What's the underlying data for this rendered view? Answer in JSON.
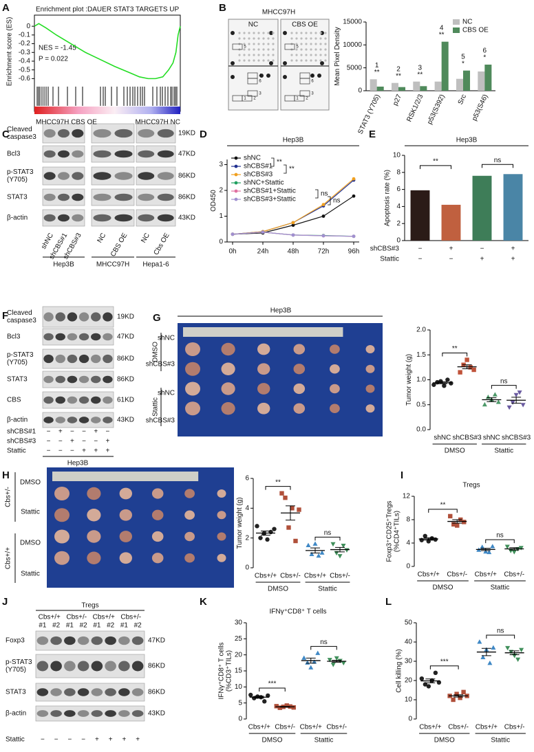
{
  "panels": [
    "A",
    "B",
    "C",
    "D",
    "E",
    "F",
    "G",
    "H",
    "I",
    "J",
    "K",
    "L"
  ],
  "array": {
    "title": "MHCC97H",
    "columns": [
      "NC",
      "CBS OE"
    ],
    "spots": [
      "5",
      "4",
      "6",
      "3",
      "1",
      "2"
    ]
  },
  "blot_c": {
    "rows": [
      {
        "label": [
          "Cleaved",
          "caspase3"
        ],
        "size": "19KD"
      },
      {
        "label": [
          "Bcl3"
        ],
        "size": "47KD"
      },
      {
        "label": [
          "p-STAT3",
          "(Y705)"
        ],
        "size": "86KD"
      },
      {
        "label": [
          "STAT3"
        ],
        "size": "86KD"
      },
      {
        "label": [
          "β-actin"
        ],
        "size": "43KD"
      }
    ],
    "lanes": [
      "shNC",
      "shCBS#1",
      "shCBS#3",
      "NC",
      "CBS OE",
      "NC",
      "Cbs OE"
    ],
    "groups": [
      "Hep3B",
      "MHCC97H",
      "Hepa1-6"
    ]
  },
  "blot_f": {
    "rows": [
      {
        "label": [
          "Cleaved",
          "caspase3"
        ],
        "size": "19KD"
      },
      {
        "label": [
          "Bcl3"
        ],
        "size": "47KD"
      },
      {
        "label": [
          "p-STAT3",
          "(Y705)"
        ],
        "size": "86KD"
      },
      {
        "label": [
          "STAT3"
        ],
        "size": "86KD"
      },
      {
        "label": [
          "CBS"
        ],
        "size": "61KD"
      },
      {
        "label": [
          "β-actin"
        ],
        "size": "43KD"
      }
    ],
    "treatments": [
      {
        "label": "shCBS#1",
        "marks": [
          "−",
          "+",
          "−",
          "−",
          "+",
          "−"
        ]
      },
      {
        "label": "shCBS#3",
        "marks": [
          "−",
          "−",
          "+",
          "−",
          "−",
          "+"
        ]
      },
      {
        "label": "Stattic",
        "marks": [
          "−",
          "−",
          "−",
          "+",
          "+",
          "+"
        ]
      }
    ],
    "cell": "Hep3B"
  },
  "photo_g": {
    "title": "Hep3B",
    "conditions": [
      "DMSO",
      "Stattic"
    ],
    "rows": [
      "shNC",
      "shCBS#3",
      "shNC",
      "shCBS#3"
    ]
  },
  "photo_h": {
    "treatments": [
      "DMSO",
      "Stattic",
      "DMSO",
      "Stattic"
    ],
    "genotypes": [
      "Cbs+/-",
      "Cbs+/+"
    ]
  },
  "blot_j": {
    "title": "Tregs",
    "groups": [
      "Cbs+/+",
      "Cbs+/-",
      "Cbs+/+",
      "Cbs+/-"
    ],
    "lanes": [
      "#1",
      "#2",
      "#1",
      "#2",
      "#1",
      "#2",
      "#1",
      "#2"
    ],
    "rows": [
      {
        "label": [
          "Foxp3"
        ],
        "size": "47KD"
      },
      {
        "label": [
          "p-STAT3",
          "(Y705)"
        ],
        "size": "86KD"
      },
      {
        "label": [
          "STAT3"
        ],
        "size": "86KD"
      },
      {
        "label": [
          "β-actin"
        ],
        "size": "43KD"
      }
    ],
    "treatment": {
      "label": "Stattic",
      "marks": [
        "−",
        "−",
        "−",
        "−",
        "+",
        "+",
        "+",
        "+"
      ]
    }
  },
  "chart_data": [
    {
      "type": "line",
      "title": "Enrichment plot :DAUER STAT3 TARGETS UP",
      "ylabel": [
        "Enrichment score (ES)"
      ],
      "x": [
        0,
        3,
        8,
        15,
        25,
        35,
        45,
        55,
        65,
        72,
        78,
        83,
        88,
        92,
        95,
        97,
        98.5,
        100
      ],
      "values": [
        0,
        0.03,
        -0.02,
        -0.1,
        -0.2,
        -0.3,
        -0.38,
        -0.46,
        -0.53,
        -0.58,
        -0.6,
        -0.6,
        -0.58,
        -0.5,
        -0.42,
        -0.3,
        -0.1,
        0
      ],
      "color": "#22dd22",
      "xlim": [
        0,
        100
      ],
      "ylim": [
        -0.66,
        0.08
      ],
      "yticks": [
        0,
        -0.1,
        -0.2,
        -0.3,
        -0.4,
        -0.5,
        -0.6
      ],
      "annotations": [
        "NES = -1.45",
        "P = 0.022"
      ],
      "labels": [
        "MHCC97H CBS OE",
        "MHCC97H NC"
      ]
    },
    {
      "type": "bar",
      "ylabel": [
        "Mean Pixel Density"
      ],
      "categories": [
        "STAT3 (Y705)",
        "p27",
        "RSK1/2/3",
        "p53(S392)",
        "Src",
        "p53(S46)"
      ],
      "series": [
        {
          "name": "NC",
          "color": "#bfbfbf",
          "values": [
            2500,
            1700,
            2000,
            2000,
            2600,
            4200
          ]
        },
        {
          "name": "CBS OE",
          "color": "#4f8a5b",
          "values": [
            900,
            800,
            1000,
            10700,
            4400,
            5700
          ]
        }
      ],
      "ylim": [
        0,
        15000
      ],
      "yticks": [
        0,
        5000,
        10000,
        15000
      ],
      "legend": "top-right",
      "markers": [
        {
          "label": "1",
          "sig": "**"
        },
        {
          "label": "2",
          "sig": "**"
        },
        {
          "label": "3",
          "sig": "**"
        },
        {
          "label": "4",
          "sig": "**"
        },
        {
          "label": "5",
          "sig": "*"
        },
        {
          "label": "6",
          "sig": "*"
        }
      ]
    },
    {
      "type": "line",
      "title": "Hep3B",
      "ylabel": [
        "OD450"
      ],
      "categories": [
        "0h",
        "24h",
        "48h",
        "72h",
        "96h"
      ],
      "series": [
        {
          "name": "shNC",
          "color": "#111111",
          "values": [
            0.3,
            0.35,
            0.65,
            1.0,
            1.78
          ]
        },
        {
          "name": "shCBS#1",
          "color": "#1f2f8f",
          "values": [
            0.3,
            0.4,
            0.75,
            1.4,
            2.4
          ]
        },
        {
          "name": "shCBS#3",
          "color": "#f0a020",
          "values": [
            0.3,
            0.4,
            0.75,
            1.45,
            2.45
          ]
        },
        {
          "name": "shNC+Stattic",
          "color": "#20a060",
          "values": [
            0.3,
            0.38,
            0.27,
            0.25,
            0.22
          ]
        },
        {
          "name": "shCBS#1+Stattic",
          "color": "#e070a0",
          "values": [
            0.3,
            0.38,
            0.27,
            0.24,
            0.22
          ]
        },
        {
          "name": "shCBS#3+Stattic",
          "color": "#a090d0",
          "values": [
            0.3,
            0.38,
            0.27,
            0.24,
            0.22
          ]
        }
      ],
      "ylim": [
        0,
        3.2
      ],
      "yticks": [
        0,
        1,
        2,
        3
      ],
      "legend": "top-left",
      "significance": [
        "**",
        "**",
        "ns",
        "ns"
      ]
    },
    {
      "type": "bar",
      "title": "Hep3B",
      "ylabel": [
        "Apoptosis rate (%)"
      ],
      "values": [
        5.9,
        4.2,
        7.6,
        7.8
      ],
      "colors": [
        "#2b1b17",
        "#c0603f",
        "#3e7d58",
        "#4a85a6"
      ],
      "ylim": [
        0,
        10
      ],
      "yticks": [
        0,
        2,
        4,
        6,
        8,
        10
      ],
      "rows": [
        {
          "label": "shCBS#3",
          "marks": [
            "−",
            "+",
            "−",
            "+"
          ]
        },
        {
          "label": "Stattic",
          "marks": [
            "−",
            "−",
            "+",
            "+"
          ]
        }
      ],
      "significance": [
        "**",
        "ns"
      ]
    },
    {
      "type": "strip",
      "ylabel": [
        "Tumor weight (g)"
      ],
      "categories": [
        "shNC",
        "shCBS#3",
        "shNC",
        "shCBS#3"
      ],
      "groups": [
        "DMSO",
        "Stattic"
      ],
      "points": [
        [
          0.9,
          0.95,
          0.97,
          0.88,
          1.0,
          0.93
        ],
        [
          1.15,
          1.3,
          1.4,
          1.25,
          1.2
        ],
        [
          0.5,
          0.65,
          0.6,
          0.7,
          0.55
        ],
        [
          0.45,
          0.55,
          0.7,
          0.75,
          0.5
        ]
      ],
      "means": [
        0.94,
        1.26,
        0.6,
        0.59
      ],
      "sems": [
        0.02,
        0.04,
        0.04,
        0.06
      ],
      "colors": [
        "#222222",
        "#c0533a",
        "#4e9a6a",
        "#6a5aa0"
      ],
      "markers": [
        "circle",
        "square",
        "triangle",
        "triangle-down"
      ],
      "ylim": [
        0,
        2
      ],
      "yticks": [
        {
          "value": 0,
          "label": "0.0"
        },
        0.5,
        {
          "value": 1,
          "label": "1.0"
        },
        1.5,
        {
          "value": 2,
          "label": "2.0"
        }
      ],
      "significance": [
        "**",
        "ns"
      ]
    },
    {
      "type": "strip",
      "ylabel": [
        "Tumor weight (g)"
      ],
      "categories": [
        "Cbs+/+",
        "Cbs+/-",
        "Cbs+/+",
        "Cbs+/-"
      ],
      "groups": [
        "DMSO",
        "Stattic"
      ],
      "points": [
        [
          2.8,
          2.0,
          2.3,
          1.9,
          2.4,
          2.6
        ],
        [
          5.0,
          4.7,
          2.7,
          4.0,
          1.8,
          3.9
        ],
        [
          1.5,
          0.9,
          1.6,
          0.8,
          1.0
        ],
        [
          1.6,
          1.0,
          0.8,
          1.5,
          1.2
        ]
      ],
      "means": [
        2.33,
        3.68,
        1.16,
        1.22
      ],
      "sems": [
        0.14,
        0.48,
        0.17,
        0.15
      ],
      "colors": [
        "#222222",
        "#b0503a",
        "#3f88c5",
        "#3f8f5a"
      ],
      "markers": [
        "circle",
        "square",
        "triangle",
        "triangle-down"
      ],
      "ylim": [
        0,
        6
      ],
      "yticks": [
        0,
        2,
        4,
        6
      ],
      "significance": [
        "**",
        "ns"
      ]
    },
    {
      "type": "strip",
      "title": "Tregs",
      "ylabel": [
        "Foxp3⁺CD25⁺Tregs",
        "(%CD4⁺TILs)"
      ],
      "categories": [
        "Cbs+/+",
        "Cbs+/-",
        "Cbs+/+",
        "Cbs+/-"
      ],
      "groups": [
        "DMSO",
        "Stattic"
      ],
      "points": [
        [
          4.5,
          5.2,
          4.3,
          4.8,
          4.6
        ],
        [
          8.6,
          7.2,
          7.0,
          8.0,
          7.6
        ],
        [
          2.8,
          3.3,
          2.5,
          2.4,
          3.4
        ],
        [
          3.4,
          2.7,
          2.5,
          3.0,
          3.2
        ]
      ],
      "means": [
        4.7,
        7.7,
        2.9,
        3.0
      ],
      "sems": [
        0.2,
        0.3,
        0.2,
        0.2
      ],
      "colors": [
        "#222222",
        "#b0503a",
        "#3f88c5",
        "#3f8f5a"
      ],
      "markers": [
        "circle",
        "square",
        "triangle",
        "triangle-down"
      ],
      "ylim": [
        0,
        12
      ],
      "yticks": [
        0,
        4,
        8,
        12
      ],
      "significance": [
        "**",
        "ns"
      ]
    },
    {
      "type": "strip",
      "title": "IFNγ⁺CD8⁺ T cells",
      "ylabel": [
        "IFNγ⁺CD8⁺ T cells",
        "(%CD3⁺TILs)"
      ],
      "categories": [
        "Cbs+/+",
        "Cbs+/-",
        "Cbs+/+",
        "Cbs+/-"
      ],
      "groups": [
        "DMSO",
        "Stattic"
      ],
      "points": [
        [
          7.5,
          6.5,
          7.0,
          6.8,
          5.5,
          7.3
        ],
        [
          4.0,
          3.5,
          3.8,
          4.2,
          3.9,
          3.6
        ],
        [
          19,
          17.5,
          16,
          17.8,
          20.5
        ],
        [
          18.5,
          17,
          19,
          18.2,
          17.5
        ]
      ],
      "means": [
        6.8,
        3.8,
        18.2,
        18.0
      ],
      "sems": [
        0.3,
        0.1,
        0.8,
        0.3
      ],
      "colors": [
        "#222222",
        "#b0503a",
        "#3f88c5",
        "#3f8f5a"
      ],
      "markers": [
        "circle",
        "square",
        "triangle",
        "triangle-down"
      ],
      "ylim": [
        0,
        30
      ],
      "yticks": [
        0,
        5,
        10,
        15,
        20,
        25,
        30
      ],
      "significance": [
        "***",
        "ns"
      ]
    },
    {
      "type": "strip",
      "ylabel": [
        "Cell killing (%)"
      ],
      "categories": [
        "Cbs+/+",
        "Cbs+/-",
        "Cbs+/+",
        "Cbs+/-"
      ],
      "groups": [
        "DMSO",
        "Stattic"
      ],
      "points": [
        [
          21,
          18,
          17,
          20,
          24,
          19
        ],
        [
          12,
          10,
          13,
          11,
          14,
          12
        ],
        [
          40,
          32,
          36,
          29,
          37
        ],
        [
          37,
          35,
          33,
          31,
          36
        ]
      ],
      "means": [
        19.8,
        12,
        34.8,
        34.4
      ],
      "sems": [
        1.0,
        0.6,
        1.9,
        1.0
      ],
      "colors": [
        "#222222",
        "#b0503a",
        "#3f88c5",
        "#3f8f5a"
      ],
      "markers": [
        "circle",
        "square",
        "triangle",
        "triangle-down"
      ],
      "ylim": [
        0,
        50
      ],
      "yticks": [
        0,
        10,
        20,
        30,
        40,
        50
      ],
      "significance": [
        "***",
        "ns"
      ]
    }
  ]
}
